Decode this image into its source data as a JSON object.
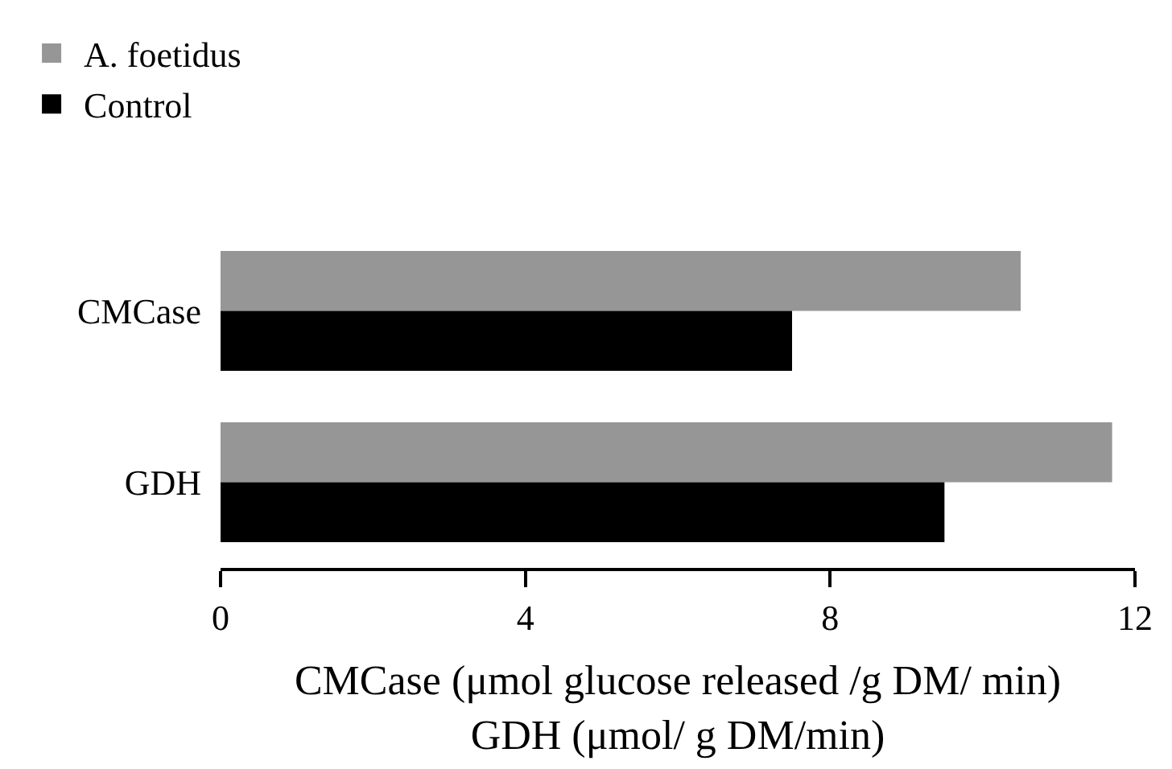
{
  "chart_data": {
    "type": "bar",
    "orientation": "horizontal",
    "categories": [
      "CMCase",
      "GDH"
    ],
    "series": [
      {
        "name": "A. foetidus",
        "color": "#969696",
        "values": [
          10.5,
          11.7
        ]
      },
      {
        "name": "Control",
        "color": "#000000",
        "values": [
          7.5,
          9.5
        ]
      }
    ],
    "xlim": [
      0,
      12
    ],
    "xticks": [
      0,
      4,
      8,
      12
    ],
    "xlabel": "CMCase (μmol glucose released /g DM/ min)\nGDH (μmol/ g DM/min)",
    "legend": "top left"
  }
}
